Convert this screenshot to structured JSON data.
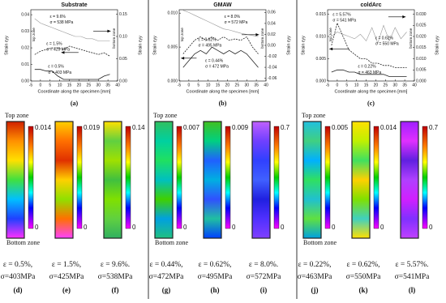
{
  "chart_data": [
    {
      "type": "line",
      "title": "Substrate",
      "xlabel": "Coordinate along the specimen [mm]",
      "ylabel": "Strain εyy",
      "y2label": "Strain εyy",
      "panel": "(a)",
      "x": [
        -3,
        0,
        3,
        6,
        9,
        12,
        15,
        18,
        21,
        24,
        27,
        30,
        33,
        36
      ],
      "xlim": [
        -5,
        40
      ],
      "xticks": [
        -5,
        0,
        5,
        10,
        15,
        20,
        25,
        30,
        35,
        40
      ],
      "ylim": [
        0,
        0.043
      ],
      "yticks": [
        {
          "value": 0,
          "label": "0.00"
        },
        0.01,
        0.02,
        0.03,
        0.04
      ],
      "y2lim": [
        0,
        0.16
      ],
      "y2ticks": [
        {
          "value": 0,
          "label": "0.00"
        },
        0.05,
        {
          "value": 0.1,
          "label": "0.10"
        },
        0.15
      ],
      "series": [
        {
          "color": "#999999",
          "style": "solid",
          "axis": "y2",
          "values": [
            0.14,
            0.13,
            0.125,
            0.12,
            0.115,
            0.11,
            0.105,
            0.1,
            0.1,
            0.095,
            0.095,
            0.09,
            0.09,
            0.09
          ]
        },
        {
          "color": "#222222",
          "style": "dashed",
          "values": [
            0.016,
            0.018,
            0.019,
            0.02,
            0.02,
            0.019,
            0.021,
            0.02,
            0.019,
            0.018,
            0.017,
            0.016,
            0.017,
            0.015
          ]
        },
        {
          "color": "#222222",
          "style": "solid",
          "values": [
            0.007,
            0.007,
            0.006,
            0.006,
            0.003,
            0.001,
            0.001,
            0.001,
            0.001,
            0.001,
            0.001,
            0.001,
            0.003,
            0.004
          ]
        }
      ],
      "annotations": [
        "ε = 9.6%",
        "σ = 538 MPa",
        "ε = 1.5%",
        "σ = 425 MPa",
        "ε = 0.5%",
        "σ = 403 MPa",
        "top zone",
        "bottom zone"
      ]
    },
    {
      "type": "line",
      "title": "GMAW",
      "xlabel": "Coordinate along the specimen [mm]",
      "ylabel": "Strain εyy",
      "y2label": "Strain εyy",
      "panel": "(b)",
      "x": [
        -3,
        0,
        3,
        6,
        9,
        12,
        15,
        18,
        21,
        24,
        27,
        30,
        33,
        36
      ],
      "xlim": [
        -5,
        40
      ],
      "xticks": [
        -5,
        0,
        5,
        10,
        15,
        20,
        25,
        30,
        35,
        40
      ],
      "ylim": [
        0,
        0.0105
      ],
      "yticks": [
        {
          "value": 0,
          "label": "0.000"
        },
        0.005,
        {
          "value": 0.01,
          "label": "0.010"
        }
      ],
      "y2lim": [
        -0.065,
        0.065
      ],
      "y2ticks": [
        -0.06,
        -0.04,
        -0.02,
        {
          "value": 0,
          "label": "0.00"
        },
        0.02,
        0.04,
        0.06
      ],
      "series": [
        {
          "color": "#999999",
          "style": "solid",
          "axis": "y2",
          "values": [
            0.064,
            0.06,
            0.055,
            0.05,
            0.045,
            0.04,
            0.035,
            0.03,
            0.028,
            0.025,
            0.022,
            0.02,
            0.018,
            0.016
          ]
        },
        {
          "color": "#222222",
          "style": "dashed",
          "values": [
            0.004,
            0.005,
            0.006,
            0.0065,
            0.006,
            0.0065,
            0.006,
            0.0065,
            0.006,
            0.0062,
            0.006,
            0.0065,
            0.005,
            0.004
          ]
        },
        {
          "color": "#222222",
          "style": "solid",
          "values": [
            0.002,
            0.003,
            0.004,
            0.0045,
            0.004,
            0.005,
            0.0045,
            0.004,
            0.0045,
            0.004,
            0.0045,
            0.004,
            0.003,
            0.002
          ]
        }
      ],
      "annotations": [
        "ε = 8.0%",
        "σ = 572 MPa",
        "ε = 0.62%",
        "σ = 495 MPa",
        "ε = 0.44%",
        "σ = 472 MPa",
        "top zone",
        "bottom zone"
      ]
    },
    {
      "type": "line",
      "title": "coldArc",
      "xlabel": "Coordinate along the specimen [mm]",
      "ylabel": "Strain εyy",
      "y2label": "Strain εyy",
      "panel": "(c)",
      "x": [
        -3,
        0,
        3,
        6,
        9,
        12,
        15,
        18,
        21,
        24,
        27,
        30,
        33,
        36
      ],
      "xlim": [
        -5,
        40
      ],
      "xticks": [
        -5,
        0,
        5,
        10,
        15,
        20,
        25,
        30,
        35,
        40
      ],
      "ylim": [
        0,
        0.016
      ],
      "yticks": [
        {
          "value": 0,
          "label": "0.000"
        },
        0.005,
        {
          "value": 0.01,
          "label": "0.010"
        },
        0.015
      ],
      "y2lim": [
        0,
        0.032
      ],
      "y2ticks": [
        {
          "value": 0,
          "label": "0.000"
        },
        0.005,
        {
          "value": 0.01,
          "label": "0.010"
        },
        0.015,
        {
          "value": 0.02,
          "label": "0.020"
        },
        0.025,
        {
          "value": 0.03,
          "label": "0.030"
        }
      ],
      "series": [
        {
          "color": "#999999",
          "style": "solid",
          "axis": "y2",
          "values": [
            0.02,
            0.022,
            0.021,
            0.02,
            0.019,
            0.021,
            0.018,
            0.024,
            0.017,
            0.025,
            0.018,
            0.024,
            0.019,
            0.022
          ]
        },
        {
          "color": "#222222",
          "style": "dashed",
          "values": [
            0.008,
            0.013,
            0.01,
            0.007,
            0.006,
            0.005,
            0.005,
            0.004,
            0.004,
            0.0035,
            0.0035,
            0.003,
            0.003,
            0.003
          ]
        },
        {
          "color": "#222222",
          "style": "solid",
          "values": [
            0.002,
            0.0025,
            0.0025,
            0.002,
            0.002,
            0.0015,
            0.0015,
            0.0015,
            0.0015,
            0.0015,
            0.001,
            0.001,
            0.001,
            0.001
          ]
        }
      ],
      "annotations": [
        "ε = 5.57%",
        "σ = 541 MPa",
        "ε = 0.62%",
        "σ = 550 MPa",
        "ε = 0.22%",
        "σ = 463 MPa",
        "top zone",
        "bottom zone"
      ]
    }
  ],
  "zones": [
    {
      "top": "Top zone",
      "bottom": "Bottom zone"
    },
    {
      "top": "Top zone",
      "bottom": "Bottom zone"
    },
    {
      "top": "Top zone",
      "bottom": "Bottom zone"
    }
  ],
  "maps": [
    {
      "cbar_max": "0.014",
      "cbar_min": "0",
      "strain": "ε = 0.5%,",
      "stress": "σ=403MPa",
      "label": "(d)"
    },
    {
      "cbar_max": "0.019",
      "cbar_min": "0",
      "strain": "ε = 1.5%,",
      "stress": "σ=425MPa",
      "label": "(e)"
    },
    {
      "cbar_max": "0.14",
      "cbar_min": "0",
      "strain": "ε = 9.6%.",
      "stress": "σ=538MPa",
      "label": "(f)"
    },
    {
      "cbar_max": "0.007",
      "cbar_min": "0",
      "strain": "ε = 0.44%,",
      "stress": "σ=472MPa",
      "label": "(g)"
    },
    {
      "cbar_max": "0.009",
      "cbar_min": "0",
      "strain": "ε = 0.62%,",
      "stress": "σ=495MPa",
      "label": "(h)"
    },
    {
      "cbar_max": "0.7",
      "cbar_min": "0",
      "strain": "ε = 8.0%.",
      "stress": "σ=572MPa",
      "label": "(i)"
    },
    {
      "cbar_max": "0.005",
      "cbar_min": "0",
      "strain": "ε = 0.22%,",
      "stress": "σ=463MPa",
      "label": "(j)"
    },
    {
      "cbar_max": "0.014",
      "cbar_min": "0",
      "strain": "ε = 0.62%,",
      "stress": "σ=550MPa",
      "label": "(k)"
    },
    {
      "cbar_max": "0.7",
      "cbar_min": "0",
      "strain": "ε = 5.57%.",
      "stress": "σ=541MPa",
      "label": "(l)"
    }
  ]
}
